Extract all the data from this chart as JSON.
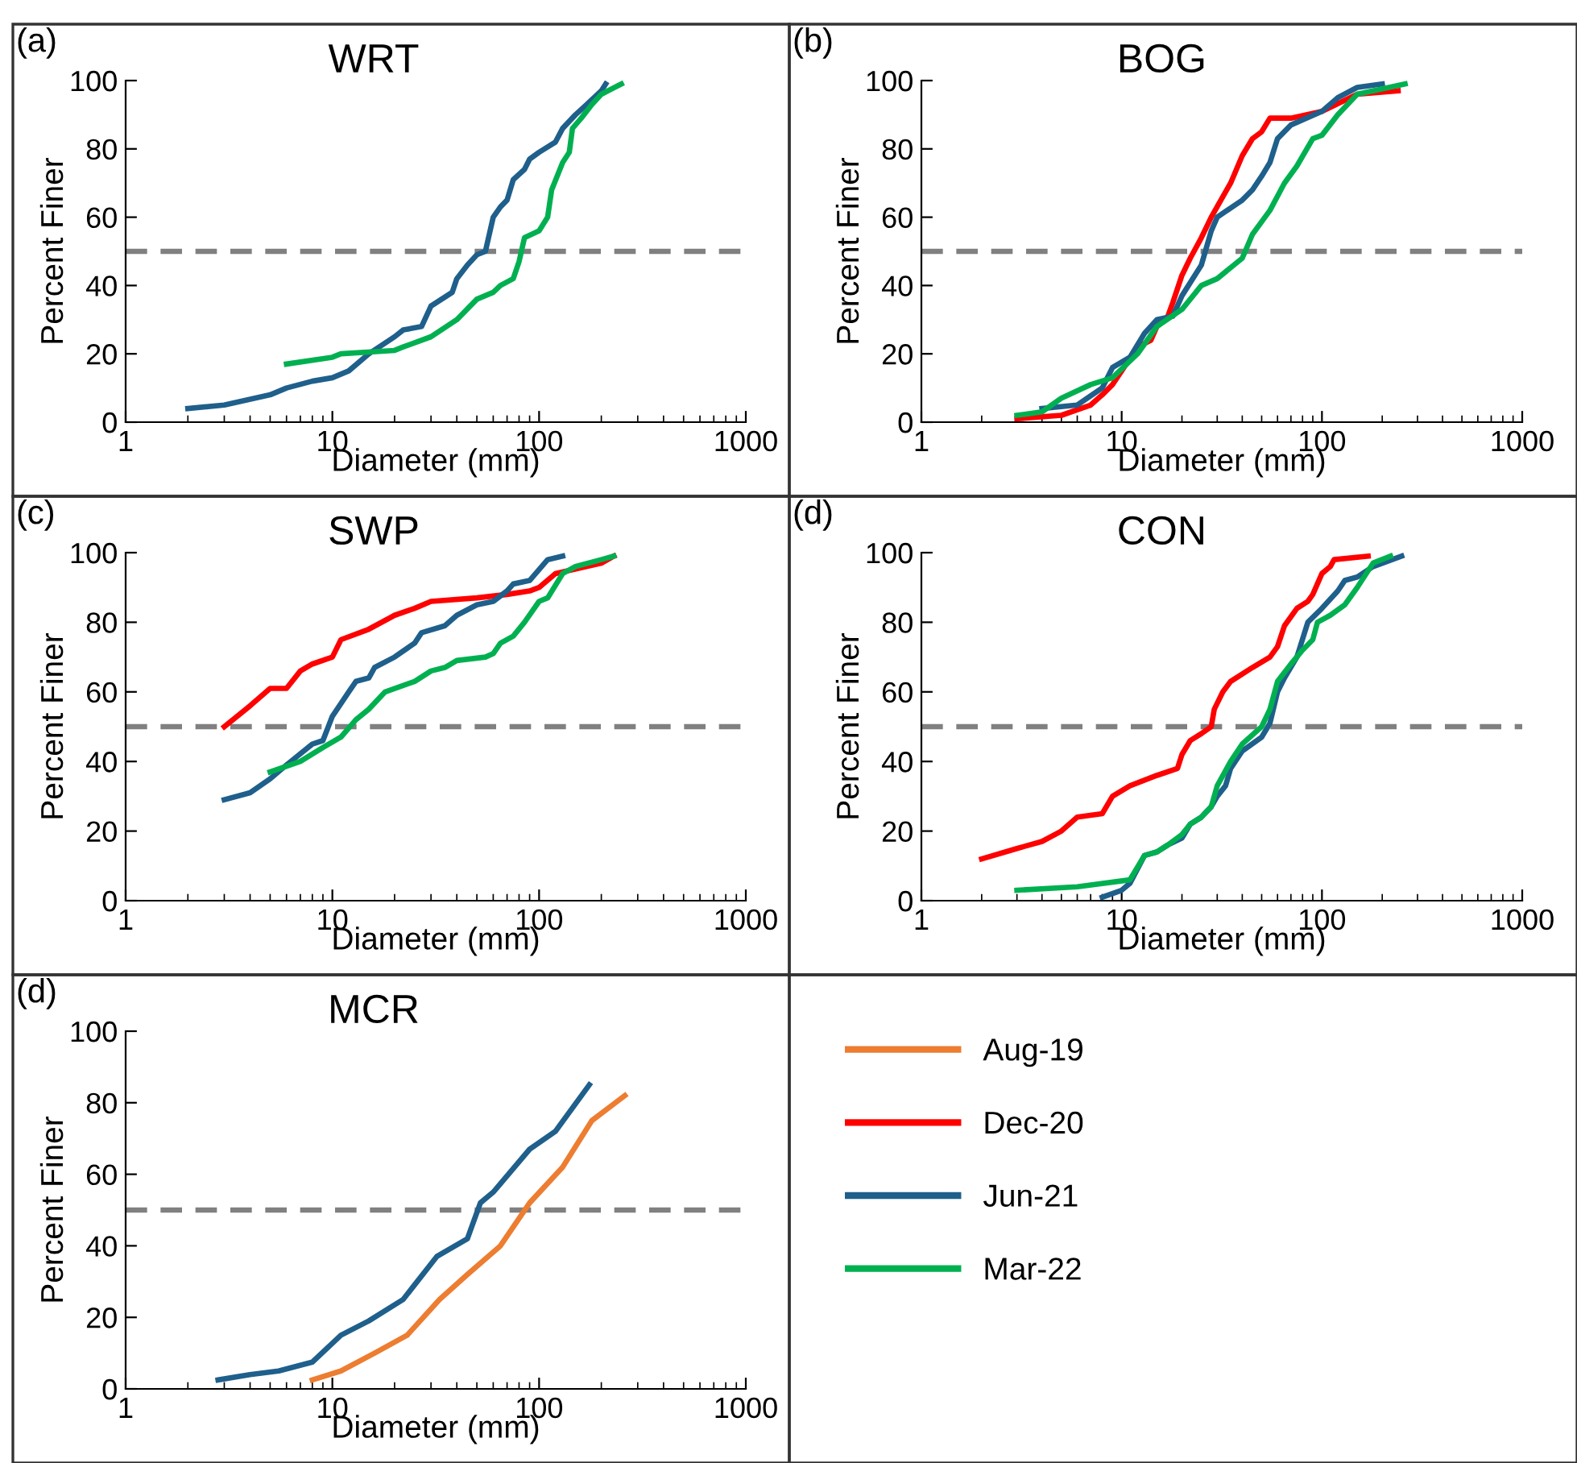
{
  "chart_data": [
    {
      "type": "line",
      "title": "WRT",
      "xlabel": "Diameter (mm)",
      "ylabel": "Percent Finer",
      "legend": "right",
      "log": "x",
      "xlim": [
        1,
        1000
      ],
      "xticks": [
        1,
        10,
        100,
        1000
      ],
      "ylim": [
        0,
        100
      ],
      "yticks": [
        0,
        20,
        40,
        60,
        80,
        100
      ],
      "annotations": [
        "(a)"
      ],
      "ref_lines": [
        {
          "axis": "y",
          "value": 50,
          "color": "#808080",
          "line_style": "dashed"
        }
      ],
      "marker": "none",
      "line_style": "solid",
      "series": [
        {
          "name": "Jun-21",
          "color": "#1f5f8b",
          "x": [
            2,
            3,
            5,
            6,
            8,
            10,
            12,
            15,
            20,
            22,
            27,
            30,
            38,
            40,
            45,
            50,
            55,
            60,
            65,
            70,
            75,
            85,
            90,
            100,
            120,
            130,
            150,
            170,
            200,
            210
          ],
          "values": [
            4,
            5,
            8,
            10,
            12,
            13,
            15,
            20,
            25,
            27,
            28,
            34,
            38,
            42,
            46,
            49,
            50,
            60,
            63,
            65,
            71,
            74,
            77,
            79,
            82,
            86,
            90,
            93,
            97,
            99
          ]
        },
        {
          "name": "Mar-22",
          "color": "#00b050",
          "x": [
            6,
            10,
            11,
            20,
            22,
            30,
            40,
            50,
            60,
            65,
            75,
            80,
            85,
            100,
            110,
            115,
            130,
            140,
            145,
            160,
            180,
            200,
            250
          ],
          "values": [
            17,
            19,
            20,
            21,
            22,
            25,
            30,
            36,
            38,
            40,
            42,
            47,
            54,
            56,
            60,
            68,
            76,
            79,
            86,
            89,
            93,
            96,
            99
          ]
        }
      ]
    },
    {
      "type": "line",
      "title": "BOG",
      "xlabel": "Diameter (mm)",
      "ylabel": "Percent Finer",
      "log": "x",
      "xlim": [
        1,
        1000
      ],
      "xticks": [
        1,
        10,
        100,
        1000
      ],
      "ylim": [
        0,
        100
      ],
      "yticks": [
        0,
        20,
        40,
        60,
        80,
        100
      ],
      "annotations": [
        "(b)"
      ],
      "ref_lines": [
        {
          "axis": "y",
          "value": 50,
          "color": "#808080",
          "line_style": "dashed"
        }
      ],
      "marker": "none",
      "line_style": "solid",
      "series": [
        {
          "name": "Dec-20",
          "color": "#ff0000",
          "x": [
            3,
            5,
            7,
            8,
            9,
            10,
            12,
            14,
            15,
            17,
            18,
            20,
            22,
            25,
            28,
            32,
            35,
            40,
            45,
            50,
            55,
            70,
            100,
            150,
            240
          ],
          "values": [
            1,
            2,
            5,
            8,
            11,
            15,
            22,
            24,
            28,
            31,
            35,
            43,
            48,
            54,
            60,
            66,
            70,
            78,
            83,
            85,
            89,
            89,
            91,
            96,
            97
          ]
        },
        {
          "name": "Jun-21",
          "color": "#1f5f8b",
          "x": [
            4,
            6,
            8,
            9,
            11,
            13,
            15,
            18,
            20,
            25,
            28,
            30,
            40,
            45,
            50,
            55,
            60,
            70,
            100,
            120,
            150,
            200
          ],
          "values": [
            4,
            5,
            10,
            16,
            19,
            26,
            30,
            31,
            37,
            46,
            56,
            60,
            65,
            68,
            72,
            76,
            83,
            87,
            91,
            95,
            98,
            99
          ]
        },
        {
          "name": "Mar-22",
          "color": "#00b050",
          "x": [
            3,
            4,
            5,
            7,
            9,
            12,
            15,
            20,
            25,
            30,
            40,
            45,
            55,
            65,
            75,
            90,
            100,
            120,
            150,
            260
          ],
          "values": [
            2,
            3,
            7,
            11,
            13,
            20,
            28,
            33,
            40,
            42,
            48,
            55,
            62,
            70,
            75,
            83,
            84,
            90,
            96,
            99
          ]
        }
      ]
    },
    {
      "type": "line",
      "title": "SWP",
      "xlabel": "Diameter (mm)",
      "ylabel": "Percent Finer",
      "log": "x",
      "xlim": [
        1,
        1000
      ],
      "xticks": [
        1,
        10,
        100,
        1000
      ],
      "ylim": [
        0,
        100
      ],
      "yticks": [
        0,
        20,
        40,
        60,
        80,
        100
      ],
      "annotations": [
        "(c)"
      ],
      "ref_lines": [
        {
          "axis": "y",
          "value": 50,
          "color": "#808080",
          "line_style": "dashed"
        }
      ],
      "marker": "none",
      "line_style": "solid",
      "series": [
        {
          "name": "Dec-20",
          "color": "#ff0000",
          "x": [
            3,
            4,
            5,
            6,
            7,
            8,
            10,
            11,
            15,
            20,
            25,
            30,
            50,
            70,
            90,
            100,
            120,
            200,
            230
          ],
          "values": [
            50,
            56,
            61,
            61,
            66,
            68,
            70,
            75,
            78,
            82,
            84,
            86,
            87,
            88,
            89,
            90,
            94,
            97,
            99
          ]
        },
        {
          "name": "Jun-21",
          "color": "#1f5f8b",
          "x": [
            3,
            4,
            5,
            6,
            8,
            9,
            10,
            12,
            13,
            15,
            16,
            20,
            25,
            27,
            35,
            40,
            50,
            60,
            70,
            75,
            90,
            110,
            130
          ],
          "values": [
            29,
            31,
            35,
            39,
            45,
            46,
            53,
            60,
            63,
            64,
            67,
            70,
            74,
            77,
            79,
            82,
            85,
            86,
            89,
            91,
            92,
            98,
            99
          ]
        },
        {
          "name": "Mar-22",
          "color": "#00b050",
          "x": [
            5,
            7,
            9,
            11,
            13,
            15,
            18,
            25,
            30,
            35,
            40,
            55,
            60,
            65,
            75,
            85,
            100,
            110,
            130,
            150,
            200,
            230
          ],
          "values": [
            37,
            40,
            44,
            47,
            52,
            55,
            60,
            63,
            66,
            67,
            69,
            70,
            71,
            74,
            76,
            80,
            86,
            87,
            94,
            96,
            98,
            99
          ]
        }
      ]
    },
    {
      "type": "line",
      "title": "CON",
      "xlabel": "Diameter (mm)",
      "ylabel": "Percent Finer",
      "log": "x",
      "xlim": [
        1,
        1000
      ],
      "xticks": [
        1,
        10,
        100,
        1000
      ],
      "ylim": [
        0,
        100
      ],
      "yticks": [
        0,
        20,
        40,
        60,
        80,
        100
      ],
      "annotations": [
        "(d)"
      ],
      "ref_lines": [
        {
          "axis": "y",
          "value": 50,
          "color": "#808080",
          "line_style": "dashed"
        }
      ],
      "marker": "none",
      "line_style": "solid",
      "series": [
        {
          "name": "Dec-20",
          "color": "#ff0000",
          "x": [
            2,
            3,
            4,
            5,
            6,
            8,
            9,
            11,
            15,
            19,
            20,
            22,
            25,
            28,
            29,
            32,
            35,
            45,
            55,
            60,
            65,
            75,
            85,
            90,
            100,
            110,
            115,
            170
          ],
          "values": [
            12,
            15,
            17,
            20,
            24,
            25,
            30,
            33,
            36,
            38,
            42,
            46,
            48,
            50,
            55,
            60,
            63,
            67,
            70,
            73,
            79,
            84,
            86,
            88,
            94,
            96,
            98,
            99
          ]
        },
        {
          "name": "Jun-21",
          "color": "#1f5f8b",
          "x": [
            8,
            10,
            11,
            13,
            15,
            17,
            20,
            22,
            25,
            28,
            30,
            33,
            35,
            40,
            50,
            55,
            60,
            65,
            75,
            85,
            100,
            120,
            130,
            150,
            180,
            250
          ],
          "values": [
            1,
            3,
            5,
            13,
            14,
            16,
            18,
            22,
            24,
            27,
            30,
            33,
            38,
            43,
            47,
            51,
            60,
            64,
            70,
            80,
            84,
            89,
            92,
            93,
            96,
            99
          ]
        },
        {
          "name": "Mar-22",
          "color": "#00b050",
          "x": [
            3,
            6,
            11,
            13,
            15,
            17,
            20,
            22,
            25,
            28,
            30,
            35,
            40,
            50,
            55,
            60,
            70,
            80,
            90,
            95,
            110,
            130,
            150,
            180,
            220
          ],
          "values": [
            3,
            4,
            6,
            13,
            14,
            16,
            19,
            22,
            24,
            27,
            33,
            40,
            45,
            50,
            55,
            63,
            68,
            72,
            75,
            80,
            82,
            85,
            90,
            97,
            99
          ]
        }
      ]
    },
    {
      "type": "line",
      "title": "MCR",
      "xlabel": "Diameter (mm)",
      "ylabel": "Percent Finer",
      "log": "x",
      "xlim": [
        1,
        1000
      ],
      "xticks": [
        1,
        10,
        100,
        1000
      ],
      "ylim": [
        0,
        100
      ],
      "yticks": [
        0,
        20,
        40,
        60,
        80,
        100
      ],
      "annotations": [
        "(d)"
      ],
      "ref_lines": [
        {
          "axis": "y",
          "value": 50,
          "color": "#808080",
          "line_style": "dashed"
        }
      ],
      "marker": "none",
      "line_style": "solid",
      "series": [
        {
          "name": "Aug-19",
          "color": "#ed7d31",
          "x": [
            8,
            11,
            16,
            23,
            33,
            45,
            65,
            90,
            130,
            180,
            260
          ],
          "values": [
            2.5,
            5,
            10,
            15,
            25,
            32,
            40,
            52,
            62,
            75,
            82
          ]
        },
        {
          "name": "Jun-21",
          "color": "#1f5f8b",
          "x": [
            2.8,
            4,
            5.5,
            8,
            11,
            15,
            22,
            32,
            45,
            52,
            60,
            90,
            120,
            175
          ],
          "values": [
            2.5,
            4,
            5,
            7.5,
            15,
            19,
            25,
            37,
            42,
            52,
            55,
            67,
            72,
            85
          ]
        }
      ]
    }
  ]
}
